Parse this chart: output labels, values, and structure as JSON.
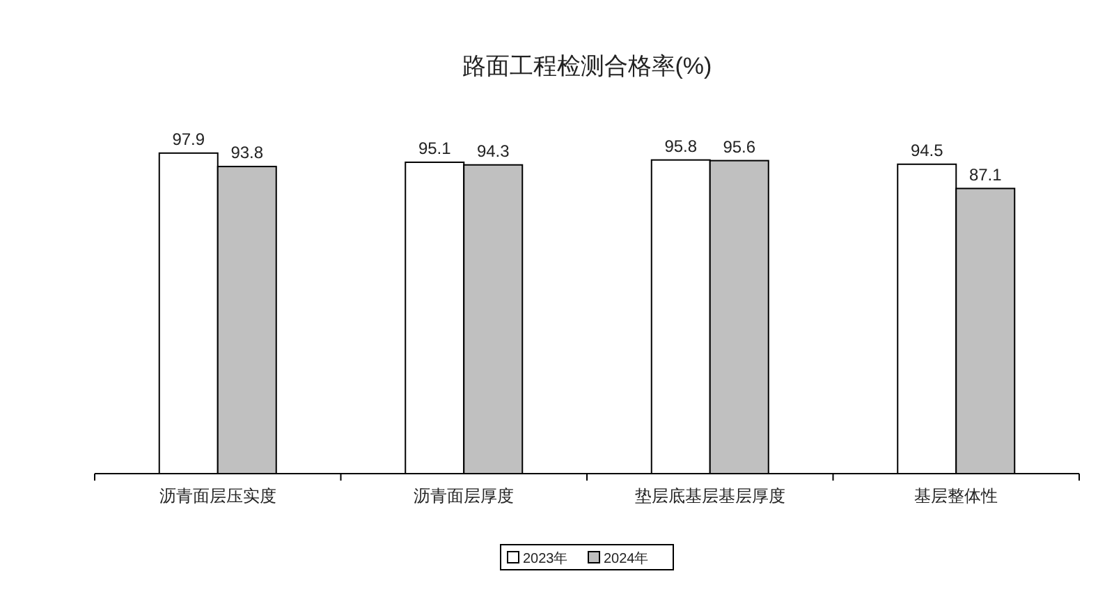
{
  "chart_data": {
    "type": "bar",
    "title": "路面工程检测合格率(%)",
    "categories": [
      "沥青面层压实度",
      "沥青面层厚度",
      "垫层底基层基层厚度",
      "基层整体性"
    ],
    "series": [
      {
        "name": "2023年",
        "color": "#ffffff",
        "values": [
          97.9,
          95.1,
          95.8,
          94.5
        ]
      },
      {
        "name": "2024年",
        "color": "#c0c0c0",
        "values": [
          93.8,
          94.3,
          95.6,
          87.1
        ]
      }
    ],
    "tick_labels": "x",
    "data_labels": true,
    "legend": "bottom"
  }
}
